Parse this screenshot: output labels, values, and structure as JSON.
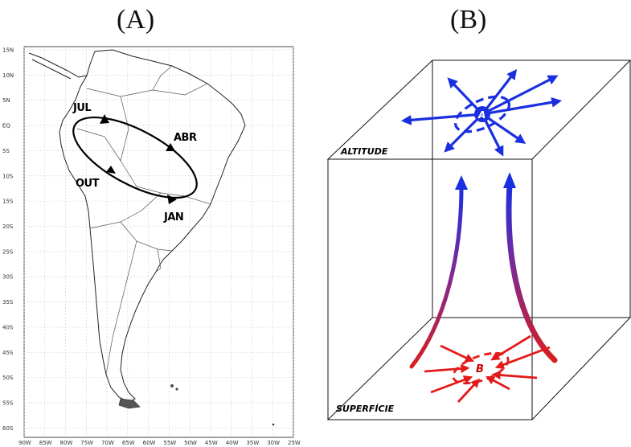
{
  "panels": {
    "a": {
      "title": "(A)"
    },
    "b": {
      "title": "(B)"
    }
  },
  "map": {
    "lat_labels": [
      "15N",
      "10N",
      "5N",
      "EQ",
      "5S",
      "10S",
      "15S",
      "20S",
      "25S",
      "30S",
      "35S",
      "40S",
      "45S",
      "50S",
      "55S",
      "60S"
    ],
    "lon_labels": [
      "90W",
      "85W",
      "80W",
      "75W",
      "70W",
      "65W",
      "60W",
      "55W",
      "50W",
      "45W",
      "40W",
      "35W",
      "30W",
      "25W"
    ],
    "months": {
      "jul": "JUL",
      "abr": "ABR",
      "out": "OUT",
      "jan": "JAN"
    }
  },
  "cube": {
    "top_label": "ALTITUDE",
    "bottom_label": "SUPERFÍCIE",
    "high_center": "A",
    "low_center": "B"
  },
  "colors": {
    "upper_flow": "#1a2fe0",
    "lower_flow": "#e31a1a",
    "gradient_top": "#3b2fd6",
    "gradient_bottom": "#d61f1f"
  }
}
